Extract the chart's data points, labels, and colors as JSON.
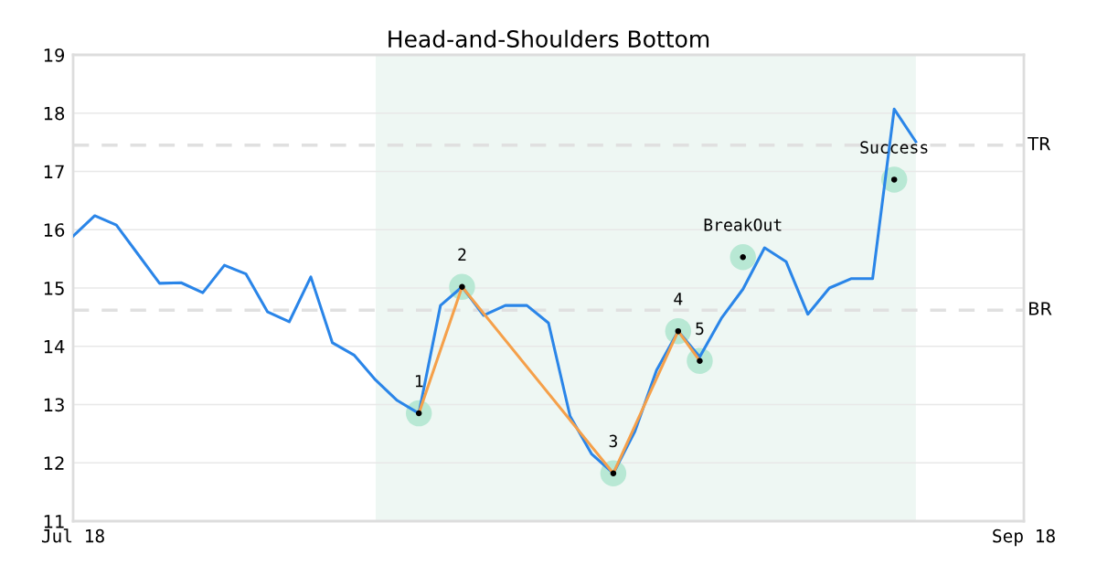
{
  "chart_data": {
    "type": "line",
    "title": "Head-and-Shoulders Bottom",
    "categories": [
      "Jul 18",
      null,
      null,
      null,
      null,
      null,
      null,
      null,
      null,
      null,
      null,
      null,
      null,
      null,
      null,
      null,
      null,
      null,
      null,
      null,
      null,
      null,
      null,
      null,
      null,
      null,
      null,
      null,
      null,
      null,
      null,
      null,
      null,
      null,
      null,
      null,
      null,
      null,
      null,
      null,
      null,
      null,
      null,
      null,
      "Sep 18"
    ],
    "ylim": [
      11,
      19
    ],
    "yticks": [
      11,
      12,
      13,
      14,
      15,
      16,
      17,
      18,
      19
    ],
    "grid": "y",
    "legend": false,
    "line_style": "solid",
    "series": [
      {
        "color": "#2a85e8",
        "values": [
          15.89,
          16.24,
          16.08,
          15.58,
          15.08,
          15.09,
          14.92,
          15.39,
          15.24,
          14.59,
          14.42,
          15.19,
          14.06,
          13.85,
          13.42,
          13.07,
          12.85,
          14.7,
          15.02,
          14.53,
          14.7,
          14.7,
          14.4,
          12.8,
          12.15,
          11.82,
          12.54,
          13.59,
          14.26,
          13.82,
          14.48,
          14.98,
          15.69,
          15.45,
          14.55,
          15.0,
          15.16,
          15.16,
          18.07,
          17.51,
          null,
          null,
          null,
          null,
          null
        ]
      },
      {
        "color": "#f5a04a",
        "values": [
          null,
          null,
          null,
          null,
          null,
          null,
          null,
          null,
          null,
          null,
          null,
          null,
          null,
          null,
          null,
          null,
          12.85,
          null,
          15.02,
          null,
          null,
          null,
          null,
          null,
          null,
          11.82,
          null,
          null,
          14.26,
          13.75,
          null,
          null,
          null,
          null,
          null,
          null,
          null,
          null,
          null,
          null,
          null,
          null,
          null,
          null,
          null
        ]
      },
      {
        "type": "scatter",
        "color": "#b8e8d4",
        "values": [
          null,
          null,
          null,
          null,
          null,
          null,
          null,
          null,
          null,
          null,
          null,
          null,
          null,
          null,
          null,
          null,
          12.85,
          null,
          15.02,
          null,
          null,
          null,
          null,
          null,
          null,
          11.82,
          null,
          null,
          14.26,
          13.75,
          null,
          15.53,
          null,
          null,
          null,
          null,
          null,
          null,
          16.86,
          null,
          null,
          null,
          null,
          null,
          null
        ]
      }
    ],
    "annotations": [
      "1",
      "2",
      "3",
      "4",
      "5",
      "BreakOut",
      "Success"
    ],
    "ref_lines": [
      {
        "axis": "y",
        "value": 17.45,
        "label": "TR",
        "color": "#e0e0e0",
        "line_style": "dashed"
      },
      {
        "axis": "y",
        "value": 14.62,
        "label": "BR",
        "color": "#e0e0e0",
        "line_style": "dashed"
      }
    ]
  }
}
